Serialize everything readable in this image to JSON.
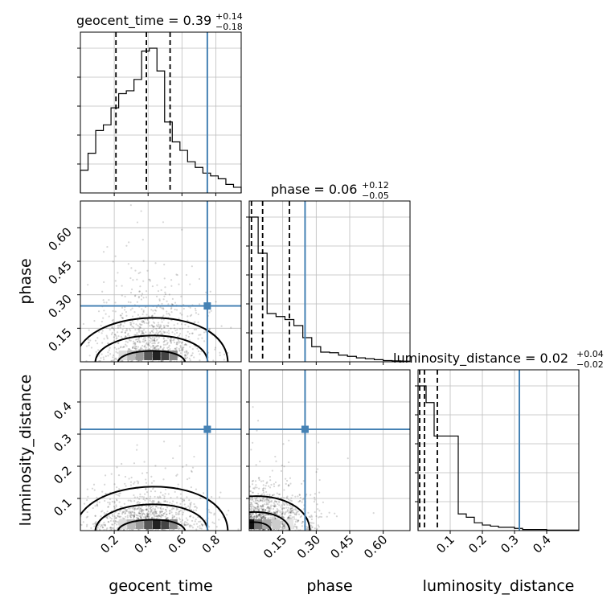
{
  "chart_data": {
    "type": "corner",
    "params": [
      {
        "key": "geocent_time",
        "label": "geocent_time",
        "title": "geocent_time = 0.39",
        "title_plus": "+0.14",
        "title_minus": "−0.18",
        "range": [
          0.0,
          0.95
        ],
        "ticks": [
          0.2,
          0.4,
          0.6,
          0.8
        ],
        "tick_labels": [
          "0.2",
          "0.4",
          "0.6",
          "0.8"
        ],
        "quantiles": [
          0.21,
          0.39,
          0.53
        ],
        "truth": 0.75,
        "hist_counts": [
          8,
          14,
          22,
          24,
          30,
          35,
          36,
          40,
          50,
          51,
          43,
          25,
          18,
          15,
          11,
          9,
          7,
          6,
          5,
          3,
          2
        ]
      },
      {
        "key": "phase",
        "label": "phase",
        "title": "phase = 0.06",
        "title_plus": "+0.12",
        "title_minus": "−0.05",
        "range": [
          0.0,
          0.72
        ],
        "ticks": [
          0.15,
          0.3,
          0.45,
          0.6
        ],
        "tick_labels": [
          "0.15",
          "0.30",
          "0.45",
          "0.60"
        ],
        "quantiles": [
          0.01,
          0.06,
          0.18
        ],
        "truth": 0.25,
        "hist_counts": [
          48,
          36,
          16,
          15,
          14,
          12,
          8,
          5,
          3.2,
          3,
          2.2,
          1.8,
          1.3,
          1,
          0.7,
          0.4,
          0.3,
          0.2
        ]
      },
      {
        "key": "luminosity_distance",
        "label": "luminosity_distance",
        "title": "luminosity_distance = 0.02",
        "title_plus": "+0.04",
        "title_minus": "−0.02",
        "range": [
          0.0,
          0.5
        ],
        "ticks": [
          0.1,
          0.2,
          0.3,
          0.4
        ],
        "tick_labels": [
          "0.1",
          "0.2",
          "0.3",
          "0.4"
        ],
        "quantiles": [
          0.005,
          0.02,
          0.06
        ],
        "truth": 0.315,
        "hist_counts": [
          13,
          11.5,
          8.5,
          8.5,
          8.5,
          1.5,
          1.2,
          0.7,
          0.5,
          0.4,
          0.3,
          0.3,
          0.2,
          0.1,
          0.1,
          0.1,
          0.05,
          0.05,
          0.05,
          0.05
        ]
      }
    ],
    "truth_color": "#4682b4",
    "grid": true
  }
}
